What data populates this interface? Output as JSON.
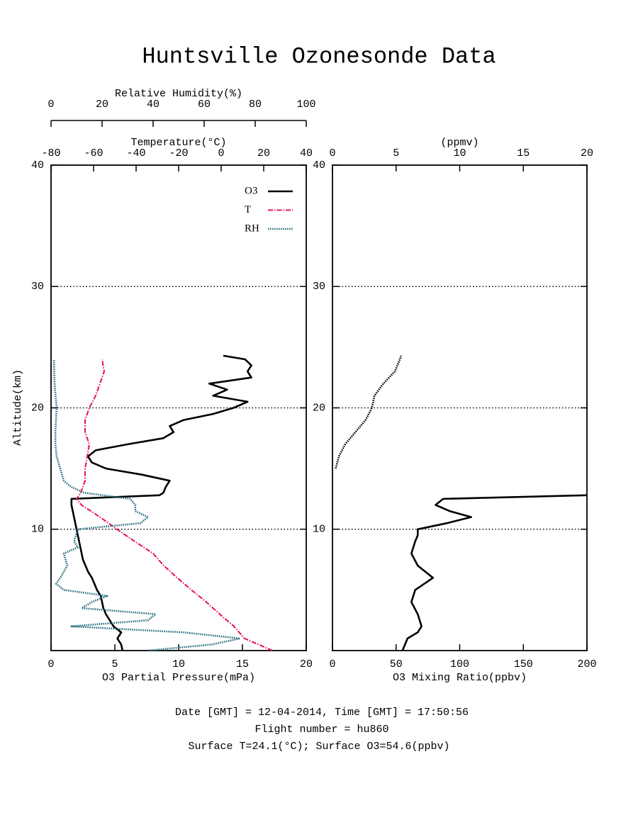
{
  "title": "Huntsville Ozonesonde Data",
  "notes": [
    "Date [GMT] = 12-04-2014,  Time [GMT] = 17:50:56",
    "Flight number = hu860",
    "Surface T=24.1(°C); Surface O3=54.6(ppbv)"
  ],
  "chart_data": [
    {
      "type": "line",
      "ylabel": "Altitude(km)",
      "ylim": [
        0,
        40
      ],
      "yticks": [
        10,
        20,
        30,
        40
      ],
      "grid": true,
      "legend": "upper right",
      "xlabel": "O3 Partial Pressure(mPa)",
      "xlim": [
        0,
        20
      ],
      "xticks": [
        0,
        5,
        10,
        15,
        20
      ],
      "x2label": "Temperature(°C)",
      "x2lim": [
        -80,
        40
      ],
      "x2ticks": [
        -80,
        -60,
        -40,
        -20,
        0,
        20,
        40
      ],
      "x3label": "Relative Humidity(%)",
      "x3lim": [
        0,
        100
      ],
      "x3ticks": [
        0,
        20,
        40,
        60,
        80,
        100
      ],
      "series": [
        {
          "name": "O3",
          "color": "#000000",
          "linestyle": "solid",
          "axis": "x",
          "altitude": [
            0,
            0.5,
            1,
            1.5,
            2,
            2.5,
            3,
            3.5,
            4,
            4.5,
            5,
            5.5,
            6,
            6.5,
            7,
            7.5,
            8,
            8.5,
            9,
            9.5,
            10,
            10.5,
            11,
            11.5,
            12,
            12.5,
            12.8,
            13,
            13.5,
            14,
            14.5,
            15,
            15.5,
            16,
            16.5,
            17,
            17.5,
            18,
            18.5,
            19,
            19.5,
            20,
            20.5,
            21,
            21.5,
            22,
            22.5,
            23,
            23.5,
            24,
            24.3
          ],
          "values": [
            5.6,
            5.5,
            5.2,
            5.5,
            4.9,
            4.6,
            4.3,
            4.1,
            4.0,
            3.9,
            3.6,
            3.4,
            3.2,
            2.9,
            2.7,
            2.5,
            2.4,
            2.3,
            2.2,
            2.1,
            2.0,
            1.9,
            1.8,
            1.7,
            1.6,
            1.6,
            8.5,
            8.8,
            9.0,
            9.3,
            7.1,
            4.3,
            3.2,
            2.9,
            3.5,
            6.0,
            8.8,
            9.6,
            9.3,
            10.4,
            12.7,
            14.3,
            15.4,
            12.7,
            13.8,
            12.4,
            15.7,
            15.4,
            15.7,
            15.2,
            13.5
          ]
        },
        {
          "name": "T",
          "color": "#e8104a",
          "linestyle": "dashdot",
          "axis": "x2",
          "altitude": [
            0,
            1,
            2,
            3,
            4,
            5,
            6,
            7,
            8,
            9,
            10,
            11,
            12,
            12.5,
            13,
            14,
            15,
            16,
            17,
            18,
            19,
            20,
            21,
            22,
            23,
            24
          ],
          "values": [
            24.1,
            11,
            6,
            -0.7,
            -7,
            -14,
            -20.7,
            -27,
            -32,
            -40.7,
            -49,
            -57,
            -65.7,
            -68,
            -66,
            -64,
            -64,
            -63,
            -62,
            -64,
            -64,
            -62,
            -59,
            -57,
            -55,
            -56
          ]
        },
        {
          "name": "RH",
          "color": "#2a7080",
          "linestyle": "dotted",
          "axis": "x3",
          "altitude": [
            0,
            0.5,
            1,
            1.5,
            2,
            2.5,
            3,
            3.5,
            4,
            4.5,
            5,
            5.5,
            6,
            7,
            8,
            8.5,
            9,
            10,
            10.5,
            11,
            11.5,
            12,
            12.5,
            13,
            13.5,
            14,
            15,
            16,
            17,
            18,
            20,
            22,
            24
          ],
          "values": [
            38,
            63,
            74,
            52,
            8,
            38,
            41,
            12,
            16,
            22,
            5,
            2,
            3.6,
            6.4,
            5,
            10.5,
            9,
            10.5,
            35,
            38,
            33,
            33,
            31,
            13,
            7.8,
            5,
            3.6,
            2.2,
            1.7,
            1.7,
            2.2,
            1.4,
            1.1
          ]
        }
      ]
    },
    {
      "type": "line",
      "ylim": [
        0,
        40
      ],
      "yticks": [
        10,
        20,
        30,
        40
      ],
      "grid": true,
      "xlabel": "O3 Mixing Ratio(ppbv)",
      "xlim": [
        0,
        200
      ],
      "xticks": [
        0,
        50,
        100,
        150,
        200
      ],
      "x2label": "(ppmv)",
      "x2lim": [
        0,
        20
      ],
      "x2ticks": [
        0,
        5,
        10,
        15,
        20
      ],
      "series": [
        {
          "color": "#000000",
          "linestyle": "solid",
          "axis": "x",
          "altitude": [
            0,
            1,
            1.5,
            2,
            3,
            4,
            5,
            6,
            7,
            8,
            9,
            9.5,
            10,
            10.5,
            11,
            11.5,
            12,
            12.5,
            12.8
          ],
          "values": [
            55,
            59,
            67,
            70,
            67,
            62,
            65,
            79,
            67,
            62,
            65,
            67,
            67,
            90,
            109,
            92,
            81,
            87,
            200
          ]
        },
        {
          "color": "#000000",
          "linestyle": "dotted",
          "axis": "x2",
          "altitude": [
            15,
            16,
            17,
            18,
            19,
            20,
            21,
            22,
            23,
            24,
            24.3
          ],
          "values": [
            0.25,
            0.5,
            1.0,
            1.8,
            2.6,
            3.1,
            3.3,
            4.0,
            4.9,
            5.3,
            5.4
          ]
        }
      ]
    }
  ]
}
